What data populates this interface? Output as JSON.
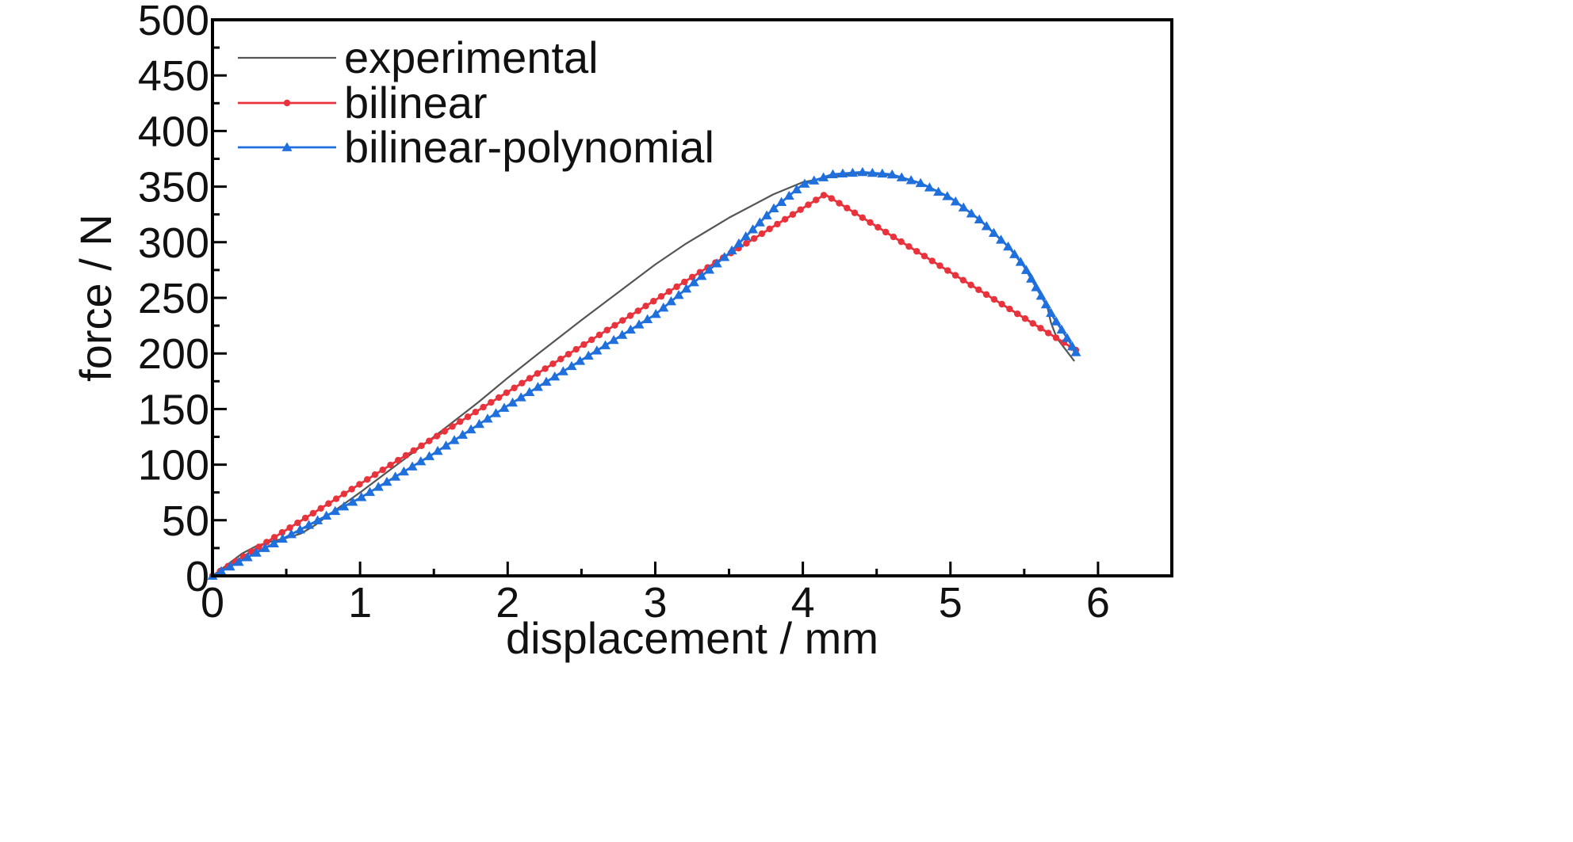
{
  "chart_data": {
    "type": "line",
    "xlabel": "displacement / mm",
    "ylabel": "force / N",
    "xlim": [
      0,
      6.5
    ],
    "ylim": [
      0,
      500
    ],
    "x_ticks": [
      0,
      1,
      2,
      3,
      4,
      5,
      6
    ],
    "y_ticks": [
      0,
      50,
      100,
      150,
      200,
      250,
      300,
      350,
      400,
      450,
      500
    ],
    "grid": false,
    "legend_position": "top-left",
    "series": [
      {
        "name": "experimental",
        "color": "#555555",
        "marker": "none",
        "x": [
          0,
          0.1,
          0.2,
          0.3,
          0.4,
          0.5,
          0.6,
          0.7,
          0.8,
          1.0,
          1.2,
          1.5,
          1.8,
          2.0,
          2.2,
          2.5,
          2.8,
          3.0,
          3.2,
          3.5,
          3.8,
          4.0,
          4.2,
          4.4,
          4.6,
          4.8,
          5.0,
          5.2,
          5.4,
          5.55,
          5.62,
          5.66,
          5.68,
          5.72,
          5.76,
          5.8,
          5.84
        ],
        "y": [
          0,
          10,
          20,
          27,
          31,
          34,
          38,
          46,
          56,
          75,
          95,
          125,
          156,
          178,
          199,
          230,
          260,
          280,
          298,
          322,
          343,
          354,
          359,
          362,
          360,
          353,
          340,
          320,
          295,
          270,
          252,
          240,
          228,
          214,
          207,
          200,
          193
        ]
      },
      {
        "name": "bilinear",
        "color": "#e8323c",
        "marker": "circle",
        "x": [
          0,
          4.15,
          5.85
        ],
        "y": [
          0,
          343,
          203
        ]
      },
      {
        "name": "bilinear-polynomial",
        "color": "#1f6fdc",
        "marker": "triangle",
        "x": [
          0,
          0.2,
          0.5,
          0.8,
          1.0,
          1.5,
          2.0,
          2.5,
          3.0,
          3.5,
          3.8,
          4.0,
          4.2,
          4.4,
          4.6,
          4.8,
          5.0,
          5.2,
          5.4,
          5.5,
          5.6,
          5.7,
          5.8,
          5.85
        ],
        "y": [
          0,
          14,
          35,
          56,
          70,
          110,
          153,
          194,
          235,
          290,
          330,
          352,
          361,
          363,
          361,
          353,
          340,
          320,
          295,
          278,
          255,
          232,
          212,
          201
        ]
      }
    ]
  }
}
